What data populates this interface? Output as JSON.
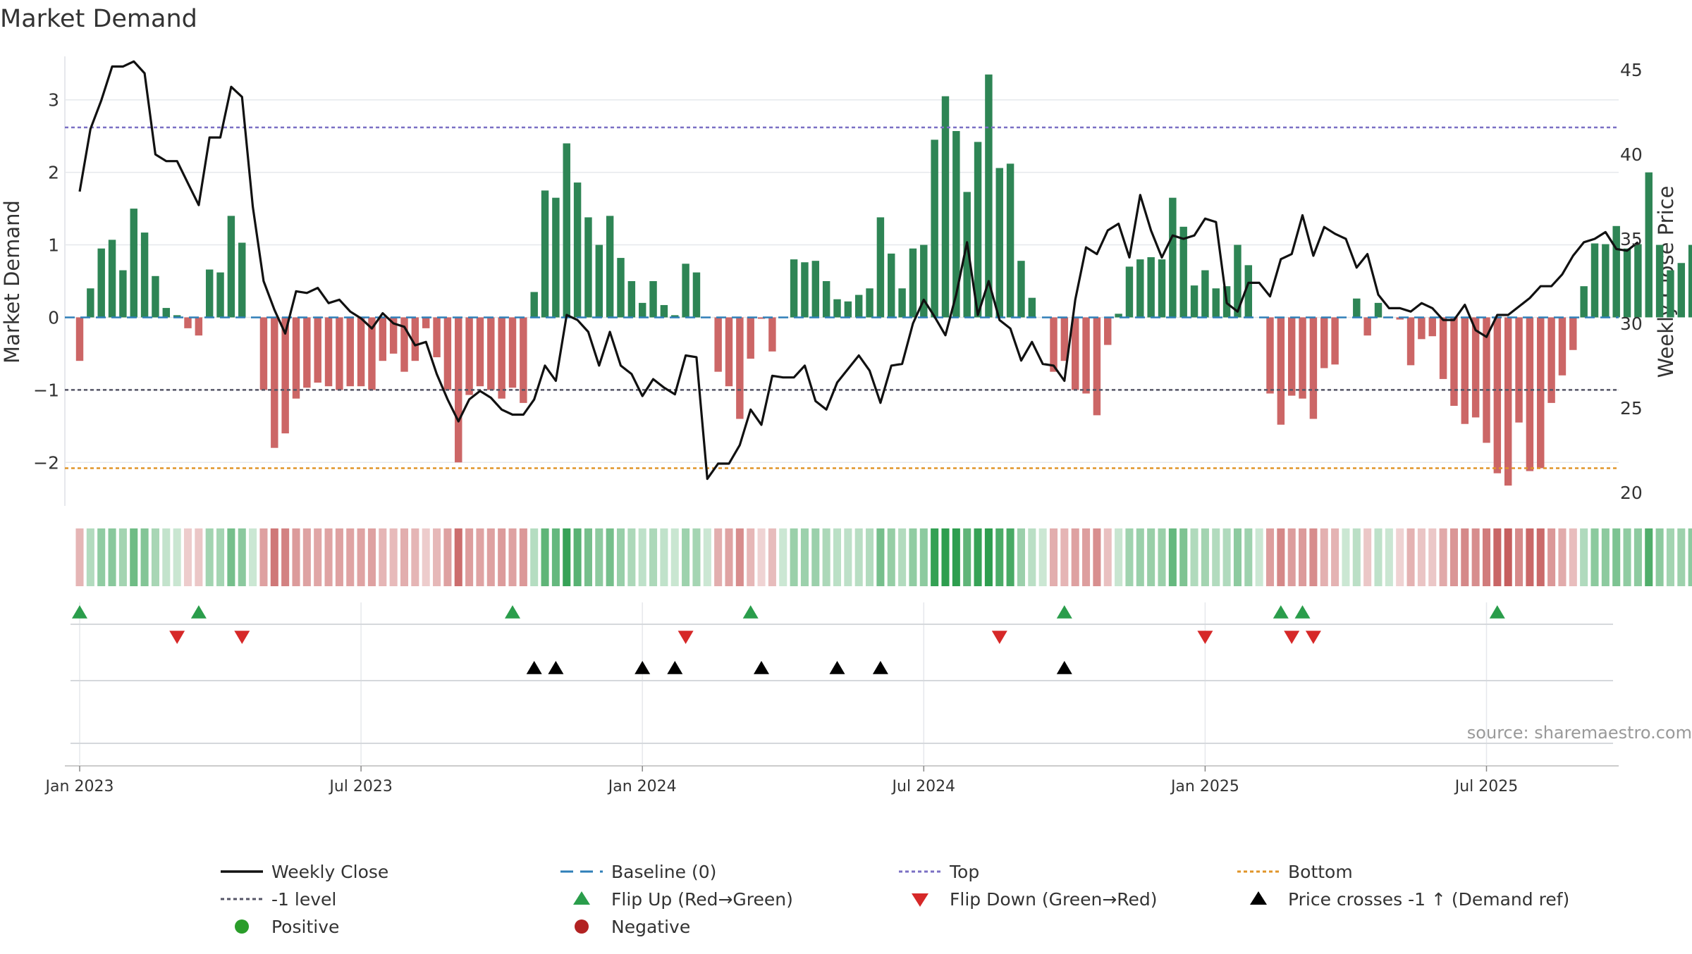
{
  "chart_data": {
    "type": "bar",
    "title": "Market Demand",
    "ylabel": "Market Demand",
    "y2label": "Weekly Close Price",
    "ylim": [
      -2.6,
      3.6
    ],
    "y2lim": [
      19.2,
      45.8
    ],
    "yticks": [
      -2,
      -1,
      0,
      1,
      2,
      3
    ],
    "ytick_labels": [
      "−2",
      "−1",
      "0",
      "1",
      "2",
      "3"
    ],
    "y2ticks": [
      20,
      25,
      30,
      35,
      40,
      45
    ],
    "y2tick_labels": [
      "20",
      "25",
      "30",
      "35",
      "40",
      "45"
    ],
    "xticks": [
      0,
      26,
      52,
      78,
      104,
      130
    ],
    "xtick_labels": [
      "Jan 2023",
      "Jul 2023",
      "Jan 2024",
      "Jul 2024",
      "Jan 2025",
      "Jul 2025"
    ],
    "reference_lines": {
      "top": 2.62,
      "minus_one": -1.0,
      "bottom": -2.08
    },
    "demand": [
      -0.6,
      0.4,
      0.95,
      1.07,
      0.65,
      1.5,
      1.17,
      0.57,
      0.13,
      0.03,
      -0.15,
      -0.25,
      0.66,
      0.62,
      1.4,
      1.03,
      0.0,
      -1.0,
      -1.8,
      -1.6,
      -1.12,
      -0.97,
      -0.9,
      -0.95,
      -1.0,
      -0.95,
      -0.95,
      -1.0,
      -0.6,
      -0.5,
      -0.75,
      -0.6,
      -0.15,
      -0.55,
      -1.0,
      -2.0,
      -1.07,
      -0.95,
      -1.0,
      -1.12,
      -0.97,
      -1.18,
      0.35,
      1.75,
      1.65,
      2.4,
      1.86,
      1.38,
      1.0,
      1.4,
      0.82,
      0.5,
      0.2,
      0.5,
      0.17,
      0.03,
      0.74,
      0.62,
      0.0,
      -0.75,
      -0.95,
      -1.4,
      -0.57,
      -0.02,
      -0.47,
      0.0,
      0.8,
      0.76,
      0.78,
      0.5,
      0.25,
      0.22,
      0.31,
      0.4,
      1.38,
      0.88,
      0.4,
      0.95,
      1.0,
      2.45,
      3.05,
      2.57,
      1.73,
      2.42,
      3.35,
      2.06,
      2.12,
      0.78,
      0.27,
      0.0,
      -0.75,
      -0.6,
      -1.0,
      -1.05,
      -1.35,
      -0.38,
      0.05,
      0.7,
      0.8,
      0.83,
      0.8,
      1.65,
      1.25,
      0.44,
      0.65,
      0.4,
      0.43,
      1.0,
      0.72,
      0.0,
      -1.05,
      -1.48,
      -1.08,
      -1.12,
      -1.4,
      -0.7,
      -0.65,
      0.0,
      0.26,
      -0.25,
      0.2,
      0.01,
      -0.03,
      -0.66,
      -0.3,
      -0.26,
      -0.85,
      -1.22,
      -1.47,
      -1.38,
      -1.73,
      -2.15,
      -2.32,
      -1.45,
      -2.12,
      -2.08,
      -1.18,
      -0.8,
      -0.45,
      0.43,
      1.02,
      1.01,
      1.26,
      0.95,
      1.01,
      2.0,
      1.0,
      0.65,
      0.75,
      1.0
    ],
    "weekly_close": [
      37.8,
      41.5,
      43.2,
      45.2,
      45.2,
      45.5,
      44.8,
      40.0,
      39.6,
      39.6,
      38.3,
      37.0,
      41.0,
      41.0,
      44.0,
      43.4,
      36.9,
      32.5,
      30.8,
      29.4,
      31.9,
      31.8,
      32.1,
      31.2,
      31.4,
      30.7,
      30.3,
      29.7,
      30.6,
      30.0,
      29.8,
      28.7,
      28.9,
      27.0,
      25.5,
      24.2,
      25.5,
      26.0,
      25.6,
      24.9,
      24.6,
      24.6,
      25.5,
      27.5,
      26.6,
      30.5,
      30.2,
      29.5,
      27.5,
      29.5,
      27.5,
      27.0,
      25.7,
      26.7,
      26.2,
      25.8,
      28.1,
      28.0,
      20.8,
      21.7,
      21.7,
      22.8,
      24.9,
      24.0,
      26.9,
      26.8,
      26.8,
      27.5,
      25.4,
      24.9,
      26.5,
      27.3,
      28.1,
      27.2,
      25.3,
      27.5,
      27.6,
      30.0,
      31.4,
      30.4,
      29.3,
      31.7,
      34.8,
      30.5,
      32.5,
      30.2,
      29.7,
      27.8,
      28.9,
      27.6,
      27.5,
      26.6,
      31.4,
      34.5,
      34.1,
      35.5,
      35.9,
      33.9,
      37.6,
      35.5,
      33.9,
      35.2,
      35.0,
      35.2,
      36.2,
      36.0,
      31.2,
      30.7,
      32.4,
      32.4,
      31.6,
      33.8,
      34.1,
      36.4,
      34.0,
      35.7,
      35.3,
      35.0,
      33.3,
      34.1,
      31.7,
      30.9,
      30.9,
      30.7,
      31.2,
      30.9,
      30.2,
      30.2,
      31.1,
      29.6,
      29.2,
      30.5,
      30.5,
      31.0,
      31.5,
      32.2,
      32.2,
      32.9,
      34.0,
      34.8,
      35.0,
      35.4,
      34.4,
      34.3,
      34.8
    ],
    "flip_up_weeks": [
      0,
      11,
      40,
      62,
      91,
      111,
      113,
      131
    ],
    "flip_down_weeks": [
      9,
      15,
      56,
      85,
      104,
      112,
      114
    ],
    "price_cross_weeks": [
      42,
      44,
      52,
      55,
      63,
      70,
      74,
      91
    ],
    "legend_position": "bottom",
    "legend": [
      {
        "key": "weekly_close",
        "label": "Weekly Close"
      },
      {
        "key": "baseline",
        "label": "Baseline (0)"
      },
      {
        "key": "top",
        "label": "Top"
      },
      {
        "key": "bottom",
        "label": "Bottom"
      },
      {
        "key": "minus_one",
        "label": "-1 level"
      },
      {
        "key": "flip_up",
        "label": "Flip Up (Red→Green)"
      },
      {
        "key": "flip_down",
        "label": "Flip Down (Green→Red)"
      },
      {
        "key": "price_cross",
        "label": "Price crosses -1 ↑ (Demand ref)"
      },
      {
        "key": "positive",
        "label": "Positive"
      },
      {
        "key": "negative",
        "label": "Negative"
      }
    ],
    "source": "source: sharemaestro.com"
  },
  "colors": {
    "positive_bar": "#2e8555",
    "negative_bar": "#cc6666",
    "price_line": "#111111",
    "baseline": "#2f7fb8",
    "top_line": "#7b70c4",
    "minus_one_line": "#555566",
    "bottom_line": "#e0952a",
    "flip_up": "#2a9d4b",
    "flip_down": "#d62828",
    "price_cross": "#000000",
    "positive_dot": "#2a9d2a",
    "negative_dot": "#b22222",
    "text": "#333333",
    "grid": "#e6e8ec"
  }
}
